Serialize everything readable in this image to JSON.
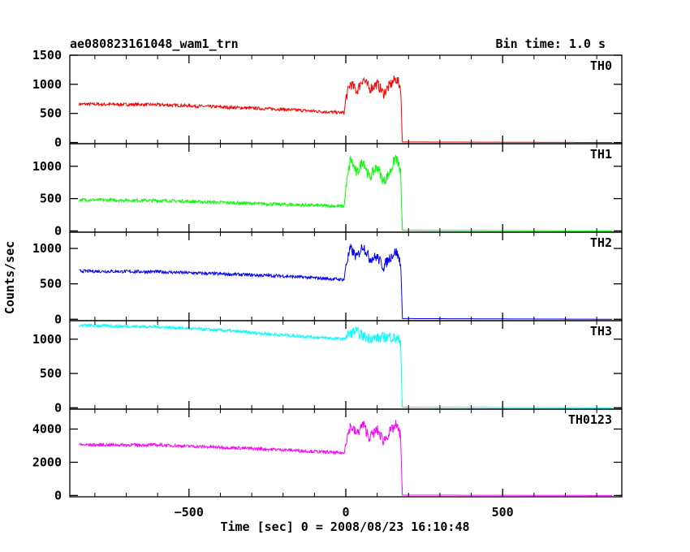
{
  "chart_data": {
    "type": "line",
    "title": "ae080823161048_wam1_trn",
    "bin_time_label": "Bin time: 1.0 s",
    "xlabel": "Time [sec] 0 = 2008/08/23 16:10:48",
    "ylabel": "Counts/sec",
    "x_range": [
      -880,
      880
    ],
    "x_ticks": [
      -500,
      0,
      500
    ],
    "data_extent": [
      -850,
      850
    ],
    "panels": [
      {
        "name": "TH0",
        "color": "#ff0000",
        "ylim": [
          -20,
          1500
        ],
        "yticks": [
          0,
          500,
          1000,
          1500
        ],
        "points": [
          [
            -850,
            660
          ],
          [
            -600,
            650
          ],
          [
            -400,
            610
          ],
          [
            -200,
            570
          ],
          [
            -5,
            510
          ],
          [
            0,
            760
          ],
          [
            15,
            1020
          ],
          [
            35,
            880
          ],
          [
            55,
            1100
          ],
          [
            75,
            920
          ],
          [
            100,
            1010
          ],
          [
            120,
            840
          ],
          [
            140,
            980
          ],
          [
            160,
            1100
          ],
          [
            175,
            950
          ],
          [
            180,
            10
          ],
          [
            850,
            0
          ]
        ]
      },
      {
        "name": "TH1",
        "color": "#00ff00",
        "ylim": [
          -20,
          1350
        ],
        "yticks": [
          0,
          500,
          1000
        ],
        "points": [
          [
            -850,
            480
          ],
          [
            -600,
            470
          ],
          [
            -400,
            440
          ],
          [
            -200,
            410
          ],
          [
            -5,
            380
          ],
          [
            0,
            640
          ],
          [
            15,
            1120
          ],
          [
            35,
            880
          ],
          [
            55,
            1100
          ],
          [
            75,
            820
          ],
          [
            100,
            1000
          ],
          [
            120,
            760
          ],
          [
            140,
            900
          ],
          [
            160,
            1150
          ],
          [
            175,
            900
          ],
          [
            180,
            10
          ],
          [
            850,
            0
          ]
        ]
      },
      {
        "name": "TH2",
        "color": "#0000ff",
        "ylim": [
          -20,
          1230
        ],
        "yticks": [
          0,
          500,
          1000
        ],
        "points": [
          [
            -850,
            680
          ],
          [
            -600,
            670
          ],
          [
            -400,
            640
          ],
          [
            -200,
            610
          ],
          [
            -5,
            560
          ],
          [
            0,
            760
          ],
          [
            15,
            1000
          ],
          [
            35,
            870
          ],
          [
            55,
            1050
          ],
          [
            75,
            860
          ],
          [
            100,
            880
          ],
          [
            120,
            740
          ],
          [
            140,
            870
          ],
          [
            160,
            960
          ],
          [
            175,
            800
          ],
          [
            180,
            10
          ],
          [
            850,
            0
          ]
        ]
      },
      {
        "name": "TH3",
        "color": "#00ffff",
        "ylim": [
          -20,
          1270
        ],
        "yticks": [
          0,
          500,
          1000
        ],
        "points": [
          [
            -850,
            1200
          ],
          [
            -600,
            1180
          ],
          [
            -400,
            1130
          ],
          [
            -200,
            1060
          ],
          [
            -5,
            1000
          ],
          [
            0,
            1040
          ],
          [
            30,
            1120
          ],
          [
            60,
            1030
          ],
          [
            100,
            1010
          ],
          [
            140,
            1040
          ],
          [
            175,
            980
          ],
          [
            180,
            10
          ],
          [
            850,
            0
          ]
        ]
      },
      {
        "name": "TH0123",
        "color": "#ff00ff",
        "ylim": [
          -80,
          5200
        ],
        "yticks": [
          0,
          2000,
          4000
        ],
        "points": [
          [
            -850,
            3050
          ],
          [
            -600,
            3040
          ],
          [
            -400,
            2900
          ],
          [
            -200,
            2750
          ],
          [
            -5,
            2550
          ],
          [
            0,
            3250
          ],
          [
            15,
            4200
          ],
          [
            35,
            3700
          ],
          [
            55,
            4300
          ],
          [
            75,
            3500
          ],
          [
            100,
            3950
          ],
          [
            120,
            3300
          ],
          [
            140,
            3800
          ],
          [
            160,
            4250
          ],
          [
            175,
            3600
          ],
          [
            180,
            20
          ],
          [
            850,
            0
          ]
        ]
      }
    ]
  }
}
